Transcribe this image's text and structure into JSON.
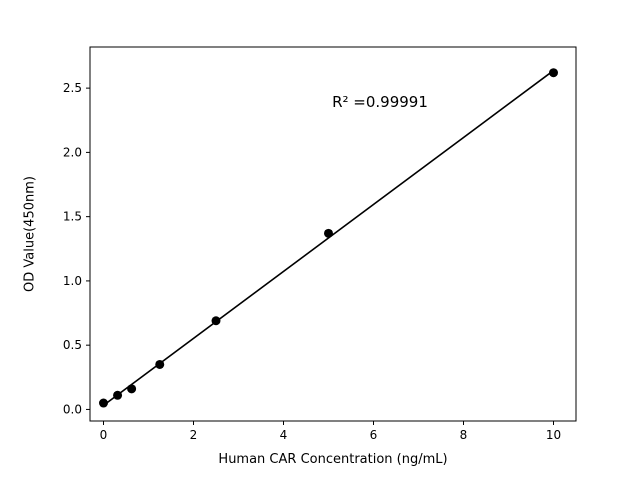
{
  "chart_data": {
    "type": "scatter",
    "title": "",
    "xlabel": "Human CAR Concentration (ng/mL)",
    "ylabel": "OD Value(450nm)",
    "annotation": "R² =0.99991",
    "x": [
      0,
      0.3125,
      0.625,
      1.25,
      2.5,
      5,
      10
    ],
    "y": [
      0.05,
      0.11,
      0.16,
      0.35,
      0.69,
      1.37,
      2.62
    ],
    "fit_line": true,
    "xlim": [
      -0.3,
      10.5
    ],
    "ylim": [
      -0.09,
      2.82
    ],
    "xtick_values": [
      0,
      2,
      4,
      6,
      8,
      10
    ],
    "xtick_labels": [
      "0",
      "2",
      "4",
      "6",
      "8",
      "10"
    ],
    "ytick_values": [
      0,
      0.5,
      1,
      1.5,
      2,
      2.5
    ],
    "ytick_labels": [
      "0.0",
      "0.5",
      "1.0",
      "1.5",
      "2.0",
      "2.5"
    ],
    "marker_color": "#000000",
    "line_color": "#000000",
    "grid": false,
    "legend": "none"
  }
}
